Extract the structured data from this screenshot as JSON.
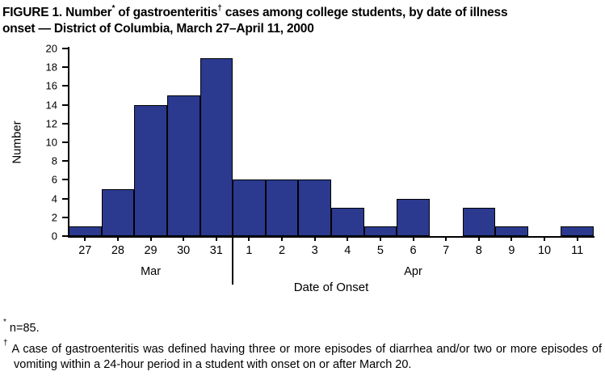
{
  "title": {
    "l1a": "FIGURE 1. Number",
    "l1sup1": "*",
    "l1b": " of gastroenteritis",
    "l1sup2": "†",
    "l1c": " cases among college students, by date of illness",
    "l2": "onset — District of Columbia, March 27–April 11, 2000"
  },
  "chart_data": {
    "type": "bar",
    "title": "FIGURE 1. Number* of gastroenteritis† cases among college students, by date of illness onset — District of Columbia, March 27–April 11, 2000",
    "categories": [
      "27",
      "28",
      "29",
      "30",
      "31",
      "1",
      "2",
      "3",
      "4",
      "5",
      "6",
      "7",
      "8",
      "9",
      "10",
      "11"
    ],
    "values": [
      1,
      5,
      14,
      15,
      19,
      6,
      6,
      6,
      3,
      1,
      4,
      0,
      3,
      1,
      0,
      1
    ],
    "month_groups": [
      {
        "label": "Mar",
        "start": 0,
        "end": 4
      },
      {
        "label": "Apr",
        "start": 5,
        "end": 15
      }
    ],
    "xlabel": "Date of Onset",
    "ylabel": "Number",
    "ylim": [
      0,
      20
    ],
    "ytick_step": 2,
    "grid": false,
    "legend": false,
    "bar_color": "#2b3a8f",
    "bar_border": "#000000",
    "total_n": 85
  },
  "footnotes": [
    {
      "symbol": "*",
      "text": "n=85."
    },
    {
      "symbol": "†",
      "text": "A case of gastroenteritis was defined having three or more episodes of diarrhea and/or two or more episodes of vomiting within a 24-hour period in a student with onset on or after March 20."
    }
  ]
}
